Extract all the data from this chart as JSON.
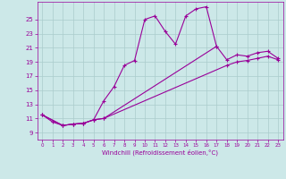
{
  "xlabel": "Windchill (Refroidissement éolien,°C)",
  "bg_color": "#cce8e8",
  "grid_color": "#aacccc",
  "line_color": "#990099",
  "xlim": [
    -0.5,
    23.5
  ],
  "ylim": [
    8.0,
    27.5
  ],
  "xticks": [
    0,
    1,
    2,
    3,
    4,
    5,
    6,
    7,
    8,
    9,
    10,
    11,
    12,
    13,
    14,
    15,
    16,
    17,
    18,
    19,
    20,
    21,
    22,
    23
  ],
  "yticks": [
    9,
    11,
    13,
    15,
    17,
    19,
    21,
    23,
    25
  ],
  "c1x": [
    0,
    1,
    2,
    3,
    4,
    5,
    6,
    7,
    8,
    9,
    10,
    11,
    12,
    13,
    14,
    15,
    16,
    17
  ],
  "c1y": [
    11.5,
    10.5,
    10.0,
    10.2,
    10.3,
    10.8,
    13.5,
    15.5,
    18.5,
    19.2,
    25.0,
    25.5,
    23.3,
    21.5,
    25.5,
    26.5,
    26.8,
    21.2
  ],
  "c2x": [
    0,
    2,
    3,
    4,
    5,
    6,
    17,
    18,
    19,
    20,
    21,
    22,
    23
  ],
  "c2y": [
    11.5,
    10.0,
    10.2,
    10.3,
    10.8,
    11.0,
    21.2,
    19.3,
    20.0,
    19.8,
    20.3,
    20.5,
    19.5
  ],
  "c3x": [
    0,
    2,
    3,
    4,
    5,
    6,
    18,
    19,
    20,
    21,
    22,
    23
  ],
  "c3y": [
    11.5,
    10.0,
    10.2,
    10.3,
    10.8,
    11.0,
    18.5,
    19.0,
    19.2,
    19.5,
    19.8,
    19.3
  ]
}
